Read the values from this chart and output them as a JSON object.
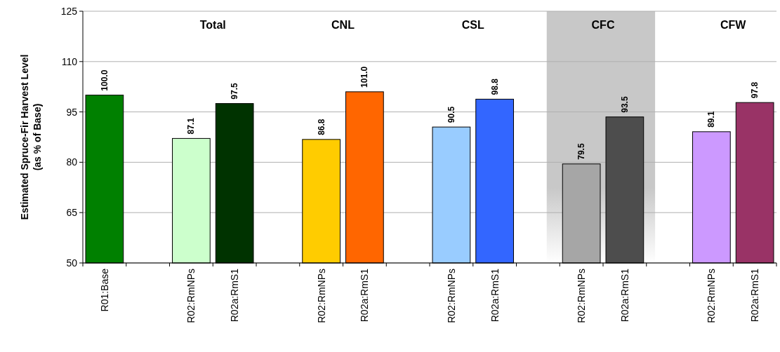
{
  "chart_data": {
    "type": "bar",
    "categories": [
      "R01:Base",
      null,
      "R02:RmNPs",
      "R02a:RmS1",
      null,
      "R02:RmNPs",
      "R02a:RmS1",
      null,
      "R02:RmNPs",
      "R02a:RmS1",
      null,
      "R02:RmNPs",
      "R02a:RmS1",
      null,
      "R02:RmNPs",
      "R02a:RmS1"
    ],
    "values": [
      100,
      null,
      87.1,
      97.5,
      null,
      86.8,
      101,
      null,
      90.5,
      98.8,
      null,
      79.5,
      93.5,
      null,
      89.1,
      97.8
    ],
    "value_labels": [
      "100.0",
      null,
      "87.1",
      "97.5",
      null,
      "86.8",
      "101.0",
      null,
      "90.5",
      "98.8",
      null,
      "79.5",
      "93.5",
      null,
      "89.1",
      "97.8"
    ],
    "colors": [
      "#008000",
      null,
      "#ccffcc",
      "#003300",
      null,
      "#ffcc00",
      "#ff6600",
      null,
      "#99ccff",
      "#3366ff",
      null,
      "#a6a6a6",
      "#4d4d4d",
      null,
      "#cc99ff",
      "#993366"
    ],
    "ylabel": "Estimated Spruce-Fir Harvest Level\n(as % of Base)",
    "ylim": [
      50,
      125
    ],
    "yticks": [
      50,
      65,
      80,
      95,
      110,
      125
    ],
    "grid": "y",
    "annotations": [
      "Total",
      "CNL",
      "CSL",
      "CFC",
      "CFW"
    ]
  }
}
